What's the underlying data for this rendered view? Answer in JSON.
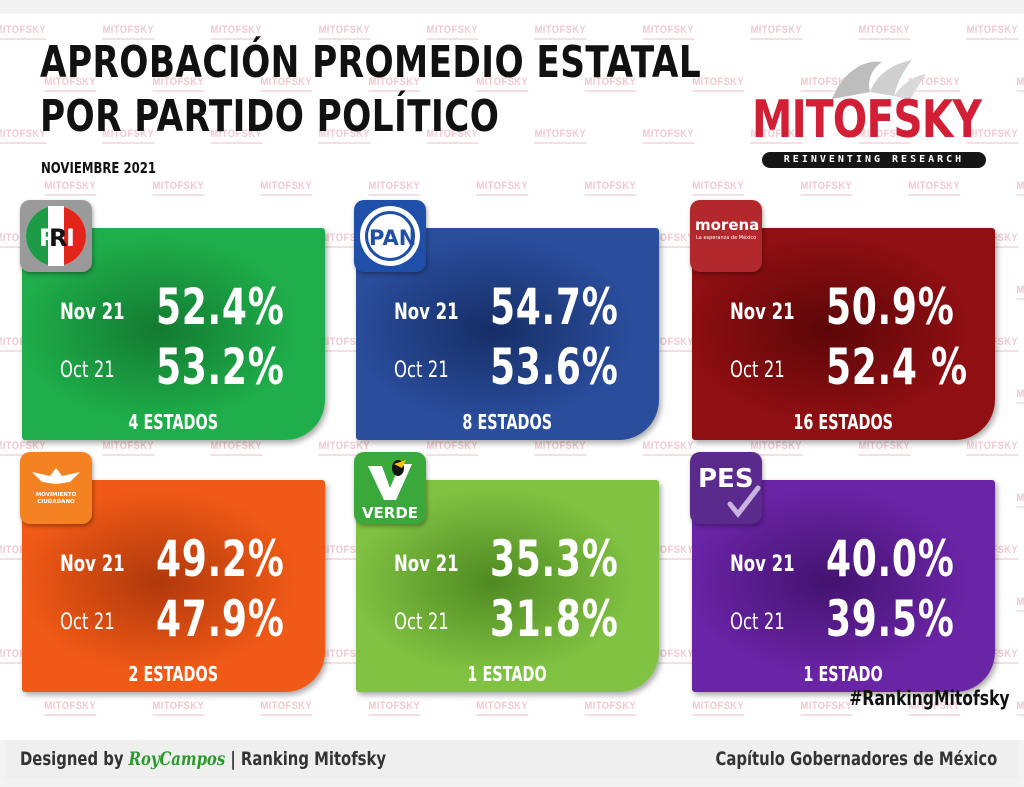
{
  "header": {
    "title_line1": "APROBACIÓN PROMEDIO ESTATAL",
    "title_line2": "POR PARTIDO POLÍTICO",
    "subtitle": "NOVIEMBRE 2021"
  },
  "logo": {
    "name": "MITOFSKY",
    "tagline": "REINVENTING RESEARCH",
    "color": "#d21f36"
  },
  "watermark": "MITOFSKY",
  "period_labels": {
    "current": "Nov 21",
    "previous": "Oct 21"
  },
  "cards": [
    {
      "party": "PRI",
      "nov": "52.4%",
      "oct": "53.2%",
      "estados": "4 ESTADOS",
      "color": "#1fae4b",
      "dark": "#137a30"
    },
    {
      "party": "PAN",
      "nov": "54.7%",
      "oct": "53.6%",
      "estados": "8 ESTADOS",
      "color": "#2a4d9c",
      "dark": "#162e66"
    },
    {
      "party": "morena",
      "party_tagline": "La esperanza de México",
      "nov": "50.9%",
      "oct": "52.4 %",
      "estados": "16 ESTADOS",
      "color": "#8f0f12",
      "dark": "#5c0608"
    },
    {
      "party": "MOVIMIENTO CIUDADANO",
      "nov": "49.2%",
      "oct": "47.9%",
      "estados": "2 ESTADOS",
      "color": "#f15a16",
      "dark": "#b0380c"
    },
    {
      "party": "VERDE",
      "nov": "35.3%",
      "oct": "31.8%",
      "estados": "1 ESTADO",
      "color": "#80c242",
      "dark": "#4f8a22"
    },
    {
      "party": "PES",
      "nov": "40.0%",
      "oct": "39.5%",
      "estados": "1 ESTADO",
      "color": "#6a24a6",
      "dark": "#43136f"
    }
  ],
  "hashtag": "#RankingMitofsky",
  "footer": {
    "designed_by": "Designed by",
    "designer": "RoyCampos",
    "separator": "| Ranking Mitofsky",
    "right": "Capítulo Gobernadores de México"
  },
  "chart_data": {
    "type": "table",
    "title": "APROBACIÓN PROMEDIO ESTATAL POR PARTIDO POLÍTICO",
    "subtitle": "NOVIEMBRE 2021",
    "categories": [
      "PRI",
      "PAN",
      "MORENA",
      "MC",
      "VERDE",
      "PES"
    ],
    "series": [
      {
        "name": "Nov 21",
        "values": [
          52.4,
          54.7,
          50.9,
          49.2,
          35.3,
          40.0
        ]
      },
      {
        "name": "Oct 21",
        "values": [
          53.2,
          53.6,
          52.4,
          47.9,
          31.8,
          39.5
        ]
      }
    ],
    "estados": [
      4,
      8,
      16,
      2,
      1,
      1
    ],
    "unit": "%"
  }
}
